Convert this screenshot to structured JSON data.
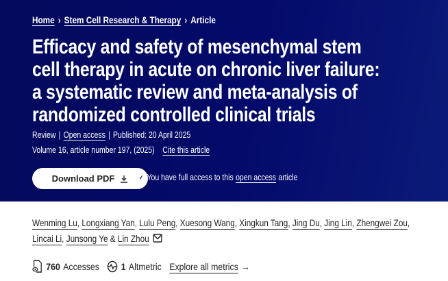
{
  "breadcrumb": {
    "items": [
      "Home",
      "Stem Cell Research & Therapy",
      "Article"
    ],
    "separator": "›"
  },
  "article": {
    "title_lines": [
      "Efficacy and safety of mesenchymal stem",
      "cell therapy in acute on chronic liver failure:",
      "a systematic review and meta-analysis of",
      "randomized controlled clinical trials"
    ],
    "type": "Review",
    "open_access": "Open access",
    "published": "Published: 20 April 2025",
    "volume": "Volume 16, article number 197, (2025)",
    "cite": "Cite this article"
  },
  "download": {
    "label": "Download PDF",
    "icon": "download-icon"
  },
  "access_notice": {
    "prefix": "You have full access to this",
    "link": "open access",
    "suffix": "article"
  },
  "authors": [
    "Wenming Lu",
    "Longxiang Yan",
    "Lulu Peng",
    "Xuesong Wang",
    "Xingkun Tang",
    "Jing Du",
    "Jing Lin",
    "Zhengwei Zou",
    "Lincai Li",
    "Junsong Ye",
    "Lin Zhou"
  ],
  "metrics": {
    "accesses_count": "760",
    "accesses_label": "Accesses",
    "altmetric_count": "1",
    "altmetric_label": "Altmetric",
    "explore": "Explore all metrics",
    "explore_arrow": "→"
  },
  "colors": {
    "hero": "#030a6a"
  }
}
